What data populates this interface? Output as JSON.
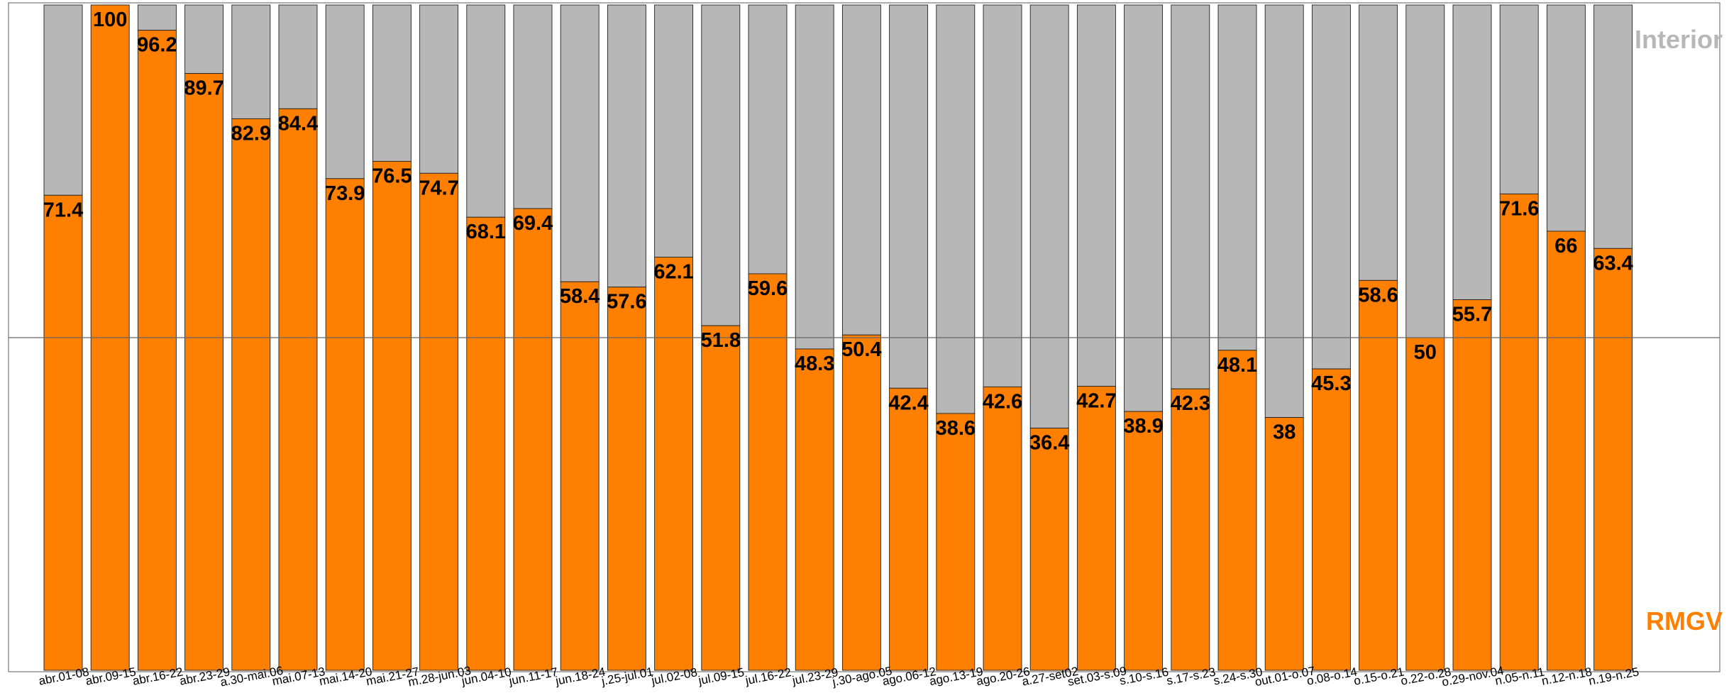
{
  "chart_data": {
    "type": "bar",
    "stacked": true,
    "categories": [
      "abr.01-08",
      "abr.09-15",
      "abr.16-22",
      "abr.23-29",
      "a.30-mai.06",
      "mai.07-13",
      "mai.14-20",
      "mai.21-27",
      "m.28-jun.03",
      "jun.04-10",
      "jun.11-17",
      "jun.18-24",
      "j.25-jul.01",
      "jul.02-08",
      "jul.09-15",
      "jul.16-22",
      "jul.23-29",
      "j.30-ago.05",
      "ago.06-12",
      "ago.13-19",
      "ago.20-26",
      "a.27-set02",
      "set.03-s.09",
      "s.10-s.16",
      "s.17-s.23",
      "s.24-s.30",
      "out.01-o.07",
      "o.08-o.14",
      "o.15-o.21",
      "o.22-o.28",
      "o.29-nov.04",
      "n.05-n.11",
      "n.12-n.18",
      "n.19-n.25"
    ],
    "series": [
      {
        "name": "RMGV",
        "color": "#FF7F00",
        "values": [
          71.4,
          100,
          96.2,
          89.7,
          82.9,
          84.4,
          73.9,
          76.5,
          74.7,
          68.1,
          69.4,
          58.4,
          57.6,
          62.1,
          51.8,
          59.6,
          48.3,
          50.4,
          42.4,
          38.6,
          42.6,
          36.4,
          42.7,
          38.9,
          42.3,
          48.1,
          38,
          45.3,
          58.6,
          50,
          55.7,
          71.6,
          66,
          63.4
        ]
      },
      {
        "name": "Interior",
        "color": "#B7B7B7",
        "values": [
          28.6,
          0,
          3.8,
          10.3,
          17.1,
          15.6,
          26.1,
          23.5,
          25.3,
          31.9,
          30.6,
          41.6,
          42.4,
          37.9,
          48.2,
          40.4,
          51.7,
          49.6,
          57.6,
          61.4,
          57.4,
          63.6,
          57.3,
          61.1,
          57.7,
          51.9,
          62,
          54.7,
          41.4,
          50,
          44.3,
          28.4,
          34,
          36.6
        ]
      }
    ],
    "data_labels": [
      "71.4",
      "100",
      "96.2",
      "89.7",
      "82.9",
      "84.4",
      "73.9",
      "76.5",
      "74.7",
      "68.1",
      "69.4",
      "58.4",
      "57.6",
      "62.1",
      "51.8",
      "59.6",
      "48.3",
      "50.4",
      "42.4",
      "38.6",
      "42.6",
      "36.4",
      "42.7",
      "38.9",
      "42.3",
      "48.1",
      "38",
      "45.3",
      "58.6",
      "50",
      "55.7",
      "71.6",
      "66",
      "63.4"
    ],
    "ylim": [
      0,
      100
    ],
    "reference_line": 50,
    "legend": [
      {
        "label": "Interior",
        "color": "#B7B7B7"
      },
      {
        "label": "RMGV",
        "color": "#FF7F00"
      }
    ],
    "title": "",
    "xlabel": "",
    "ylabel": ""
  }
}
